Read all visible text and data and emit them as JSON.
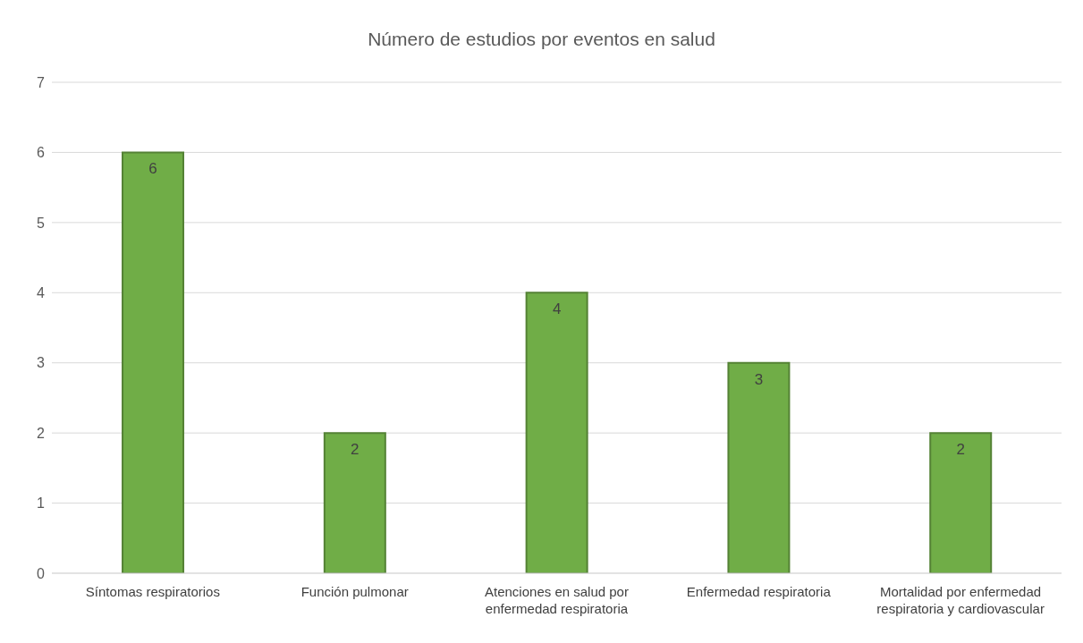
{
  "chart_data": {
    "type": "bar",
    "title": "Número de estudios por eventos en salud",
    "categories": [
      "Síntomas respiratorios",
      "Función pulmonar",
      "Atenciones en salud por enfermedad respiratoria",
      "Enfermedad respiratoria",
      "Mortalidad por enfermedad respiratoria y cardiovascular"
    ],
    "values": [
      6,
      2,
      4,
      3,
      2
    ],
    "color": "#70ad47",
    "ylim": [
      0,
      7
    ],
    "yticks": [
      0,
      1,
      2,
      3,
      4,
      5,
      6,
      7
    ],
    "grid": "y",
    "data_labels": true
  }
}
